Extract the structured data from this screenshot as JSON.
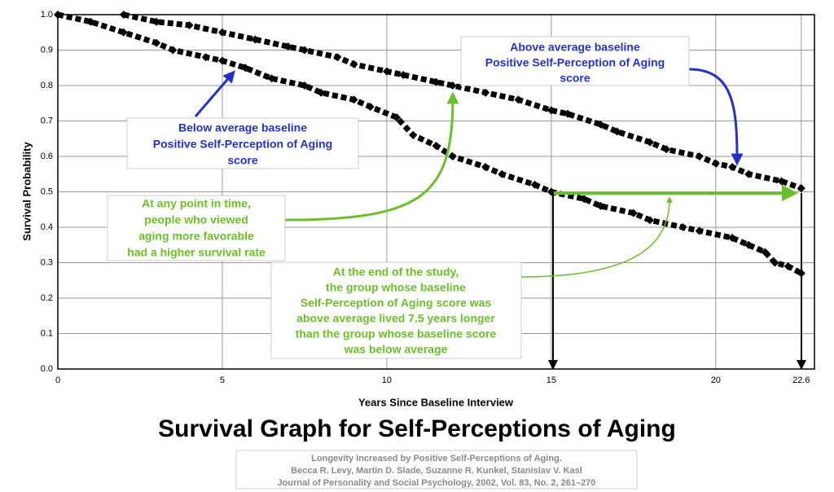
{
  "chart_data": {
    "type": "line",
    "title": "Survival Graph for Self-Perceptions of Aging",
    "x_label": "Years Since Baseline Interview",
    "y_label": "Survival Probability",
    "xlim": [
      0,
      23
    ],
    "ylim": [
      0,
      1
    ],
    "xticks": [
      0,
      5,
      10,
      15,
      20,
      22.6
    ],
    "yticks": [
      {
        "value": 0,
        "label": "0.0"
      },
      {
        "value": 0.1,
        "label": "0.1"
      },
      {
        "value": 0.2,
        "label": "0.2"
      },
      {
        "value": 0.3,
        "label": "0.3"
      },
      {
        "value": 0.4,
        "label": "0.4"
      },
      {
        "value": 0.5,
        "label": "0.5"
      },
      {
        "value": 0.6,
        "label": "0.6"
      },
      {
        "value": 0.7,
        "label": "0.7"
      },
      {
        "value": 0.8,
        "label": "0.8"
      },
      {
        "value": 0.9,
        "label": "0.9"
      },
      {
        "value": 1,
        "label": "1.0"
      }
    ],
    "grid": true,
    "series": [
      {
        "color": "#000000",
        "x": [
          0,
          1,
          2,
          3,
          3.5,
          4.5,
          5,
          5.7,
          6.5,
          7.5,
          8,
          9,
          9.5,
          10.3,
          10.8,
          11.5,
          12,
          13,
          13.5,
          14.5,
          15,
          16,
          16.5,
          17.5,
          18,
          19,
          19.5,
          20.5,
          21,
          21.5,
          21.8,
          22.2,
          22.6
        ],
        "values": [
          1.0,
          0.98,
          0.95,
          0.92,
          0.9,
          0.88,
          0.87,
          0.85,
          0.82,
          0.8,
          0.78,
          0.76,
          0.74,
          0.71,
          0.66,
          0.63,
          0.6,
          0.57,
          0.55,
          0.52,
          0.5,
          0.48,
          0.46,
          0.44,
          0.42,
          0.4,
          0.39,
          0.37,
          0.35,
          0.33,
          0.3,
          0.29,
          0.27
        ]
      },
      {
        "color": "#000000",
        "x": [
          2,
          3,
          4,
          5,
          6,
          7,
          7.5,
          8.5,
          9,
          10,
          10.5,
          11.5,
          12,
          13,
          14,
          15,
          15.5,
          16.5,
          17,
          18,
          18.5,
          19.5,
          20,
          20.5,
          21,
          22,
          22.6
        ],
        "values": [
          1.0,
          0.98,
          0.97,
          0.95,
          0.93,
          0.91,
          0.9,
          0.88,
          0.86,
          0.84,
          0.83,
          0.81,
          0.8,
          0.78,
          0.76,
          0.73,
          0.72,
          0.69,
          0.67,
          0.64,
          0.62,
          0.6,
          0.58,
          0.57,
          0.55,
          0.53,
          0.51
        ]
      }
    ],
    "annotations": [
      {
        "lines": [
          "Above average baseline",
          "Positive Self-Perception of Aging",
          "score"
        ]
      },
      {
        "lines": [
          "Below average baseline",
          "Positive Self-Perception of Aging",
          "score"
        ]
      },
      {
        "lines": [
          "At any point in time,",
          "people who viewed",
          "aging more favorable",
          "had a higher survival rate"
        ]
      },
      {
        "lines": [
          "At the end of the study,",
          "the group whose baseline",
          "Self-Perception of Aging score was",
          "above average lived 7.5 years longer",
          "than the group whose baseline score",
          "was below average"
        ]
      }
    ],
    "citation": [
      "Longevity Increased by Positive Self-Perceptions of Aging.",
      "Becca R. Levy, Martin D. Slade, Suzanne R. Kunkel, Stanislav V. Kasl",
      "Journal of Personality and Social Psychology, 2002, Vol. 83, No. 2, 261–270"
    ]
  }
}
